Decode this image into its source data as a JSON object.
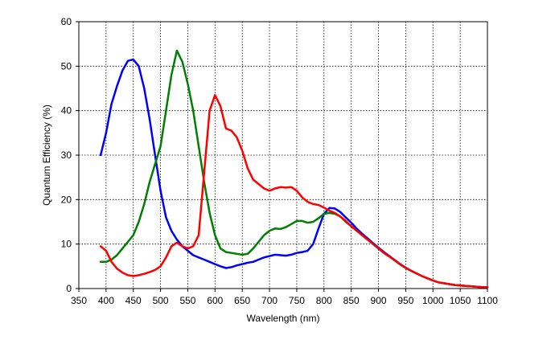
{
  "chart_data": {
    "type": "line",
    "title": "",
    "xlabel": "Wavelength (nm)",
    "ylabel": "Quantum Efficiency (%)",
    "xlim": [
      350,
      1100
    ],
    "ylim": [
      0,
      60
    ],
    "xticks": [
      350,
      400,
      450,
      500,
      550,
      600,
      650,
      700,
      750,
      800,
      850,
      900,
      950,
      1000,
      1050,
      1100
    ],
    "yticks": [
      0,
      10,
      20,
      30,
      40,
      50,
      60
    ],
    "grid": true,
    "legend": "none",
    "series": [
      {
        "color": "#0000ff",
        "points": [
          [
            390,
            30
          ],
          [
            400,
            35
          ],
          [
            410,
            41.5
          ],
          [
            420,
            45.5
          ],
          [
            430,
            49
          ],
          [
            440,
            51.2
          ],
          [
            450,
            51.5
          ],
          [
            460,
            50
          ],
          [
            470,
            45
          ],
          [
            480,
            38
          ],
          [
            490,
            30
          ],
          [
            500,
            22
          ],
          [
            510,
            16
          ],
          [
            520,
            13
          ],
          [
            530,
            11
          ],
          [
            540,
            9.5
          ],
          [
            550,
            8.5
          ],
          [
            560,
            7.5
          ],
          [
            570,
            7
          ],
          [
            580,
            6.5
          ],
          [
            590,
            6
          ],
          [
            600,
            5.5
          ],
          [
            610,
            5
          ],
          [
            620,
            4.6
          ],
          [
            630,
            4.8
          ],
          [
            640,
            5.2
          ],
          [
            650,
            5.5
          ],
          [
            660,
            5.8
          ],
          [
            670,
            6
          ],
          [
            680,
            6.5
          ],
          [
            690,
            7
          ],
          [
            700,
            7.3
          ],
          [
            710,
            7.6
          ],
          [
            720,
            7.5
          ],
          [
            730,
            7.4
          ],
          [
            740,
            7.6
          ],
          [
            750,
            8
          ],
          [
            760,
            8.2
          ],
          [
            770,
            8.5
          ],
          [
            780,
            10
          ],
          [
            790,
            13.5
          ],
          [
            800,
            16.8
          ],
          [
            810,
            18.1
          ],
          [
            820,
            18
          ],
          [
            830,
            17.2
          ],
          [
            840,
            16
          ],
          [
            850,
            14.8
          ],
          [
            860,
            13.5
          ],
          [
            870,
            12.3
          ],
          [
            880,
            11.3
          ],
          [
            890,
            10.2
          ],
          [
            900,
            9.2
          ],
          [
            910,
            8.2
          ],
          [
            920,
            7.3
          ],
          [
            930,
            6.4
          ],
          [
            940,
            5.5
          ],
          [
            950,
            4.7
          ],
          [
            960,
            4
          ],
          [
            970,
            3.4
          ],
          [
            980,
            2.8
          ],
          [
            990,
            2.3
          ],
          [
            1000,
            1.8
          ],
          [
            1010,
            1.4
          ],
          [
            1020,
            1.2
          ],
          [
            1030,
            1
          ],
          [
            1040,
            0.8
          ],
          [
            1050,
            0.7
          ],
          [
            1060,
            0.6
          ],
          [
            1070,
            0.5
          ],
          [
            1080,
            0.4
          ],
          [
            1090,
            0.3
          ],
          [
            1100,
            0.3
          ]
        ]
      },
      {
        "color": "#007f00",
        "points": [
          [
            390,
            6
          ],
          [
            400,
            6
          ],
          [
            410,
            6.5
          ],
          [
            420,
            7.5
          ],
          [
            430,
            9
          ],
          [
            440,
            10.5
          ],
          [
            450,
            12
          ],
          [
            460,
            15
          ],
          [
            470,
            19
          ],
          [
            480,
            24
          ],
          [
            490,
            28
          ],
          [
            500,
            32
          ],
          [
            510,
            40
          ],
          [
            520,
            48
          ],
          [
            530,
            53.5
          ],
          [
            540,
            51
          ],
          [
            550,
            46
          ],
          [
            560,
            40
          ],
          [
            570,
            32
          ],
          [
            580,
            24
          ],
          [
            590,
            17
          ],
          [
            600,
            12
          ],
          [
            610,
            9
          ],
          [
            620,
            8.2
          ],
          [
            630,
            8
          ],
          [
            640,
            7.8
          ],
          [
            650,
            7.6
          ],
          [
            660,
            7.8
          ],
          [
            670,
            9
          ],
          [
            680,
            10.5
          ],
          [
            690,
            12
          ],
          [
            700,
            13
          ],
          [
            710,
            13.5
          ],
          [
            720,
            13.4
          ],
          [
            730,
            13.8
          ],
          [
            740,
            14.5
          ],
          [
            750,
            15.2
          ],
          [
            760,
            15.2
          ],
          [
            770,
            14.8
          ],
          [
            780,
            15
          ],
          [
            790,
            15.8
          ],
          [
            800,
            16.8
          ],
          [
            810,
            17
          ],
          [
            820,
            16.8
          ],
          [
            830,
            16.2
          ],
          [
            840,
            15
          ],
          [
            850,
            14
          ],
          [
            860,
            13
          ],
          [
            870,
            12
          ],
          [
            880,
            11
          ],
          [
            890,
            10
          ],
          [
            900,
            9
          ],
          [
            910,
            8
          ],
          [
            920,
            7.2
          ],
          [
            930,
            6.3
          ],
          [
            940,
            5.4
          ],
          [
            950,
            4.6
          ],
          [
            960,
            4
          ],
          [
            970,
            3.4
          ],
          [
            980,
            2.8
          ],
          [
            990,
            2.3
          ],
          [
            1000,
            1.8
          ],
          [
            1010,
            1.4
          ],
          [
            1020,
            1.2
          ],
          [
            1030,
            1
          ],
          [
            1040,
            0.8
          ],
          [
            1050,
            0.7
          ],
          [
            1060,
            0.6
          ],
          [
            1070,
            0.5
          ],
          [
            1080,
            0.4
          ],
          [
            1090,
            0.3
          ],
          [
            1100,
            0.3
          ]
        ]
      },
      {
        "color": "#ff0000",
        "points": [
          [
            390,
            9.5
          ],
          [
            400,
            8.5
          ],
          [
            410,
            6
          ],
          [
            420,
            4.5
          ],
          [
            430,
            3.6
          ],
          [
            440,
            3
          ],
          [
            450,
            2.8
          ],
          [
            460,
            3
          ],
          [
            470,
            3.3
          ],
          [
            480,
            3.7
          ],
          [
            490,
            4.2
          ],
          [
            500,
            5
          ],
          [
            510,
            7
          ],
          [
            520,
            9.5
          ],
          [
            530,
            10.3
          ],
          [
            540,
            9.5
          ],
          [
            550,
            9
          ],
          [
            560,
            9.5
          ],
          [
            570,
            12
          ],
          [
            580,
            26
          ],
          [
            590,
            40
          ],
          [
            600,
            43.5
          ],
          [
            610,
            41
          ],
          [
            620,
            36
          ],
          [
            630,
            35.5
          ],
          [
            640,
            34
          ],
          [
            650,
            31
          ],
          [
            660,
            27
          ],
          [
            670,
            24.5
          ],
          [
            680,
            23.5
          ],
          [
            690,
            22.5
          ],
          [
            700,
            22
          ],
          [
            710,
            22.5
          ],
          [
            720,
            22.8
          ],
          [
            730,
            22.7
          ],
          [
            740,
            22.8
          ],
          [
            750,
            22
          ],
          [
            760,
            20.5
          ],
          [
            770,
            19.5
          ],
          [
            780,
            19
          ],
          [
            790,
            18.8
          ],
          [
            800,
            18.2
          ],
          [
            810,
            17.5
          ],
          [
            820,
            17
          ],
          [
            830,
            16.2
          ],
          [
            840,
            15.2
          ],
          [
            850,
            14
          ],
          [
            860,
            13
          ],
          [
            870,
            12
          ],
          [
            880,
            11
          ],
          [
            890,
            10
          ],
          [
            900,
            9
          ],
          [
            910,
            8
          ],
          [
            920,
            7.2
          ],
          [
            930,
            6.3
          ],
          [
            940,
            5.4
          ],
          [
            950,
            4.6
          ],
          [
            960,
            4
          ],
          [
            970,
            3.4
          ],
          [
            980,
            2.8
          ],
          [
            990,
            2.3
          ],
          [
            1000,
            1.8
          ],
          [
            1010,
            1.4
          ],
          [
            1020,
            1.2
          ],
          [
            1030,
            1
          ],
          [
            1040,
            0.8
          ],
          [
            1050,
            0.7
          ],
          [
            1060,
            0.6
          ],
          [
            1070,
            0.5
          ],
          [
            1080,
            0.4
          ],
          [
            1090,
            0.3
          ],
          [
            1100,
            0.3
          ]
        ]
      }
    ]
  }
}
